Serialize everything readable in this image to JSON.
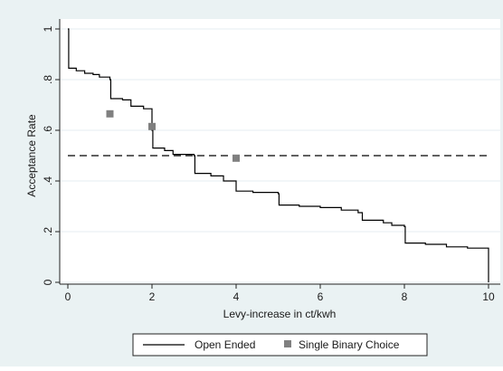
{
  "chart_data": {
    "type": "line",
    "xlabel": "Levy-increase in ct/kwh",
    "ylabel": "Acceptance Rate",
    "xlim": [
      0,
      10
    ],
    "ylim": [
      0,
      1
    ],
    "x_ticks": [
      "0",
      "2",
      "4",
      "6",
      "8",
      "10"
    ],
    "y_ticks": [
      "0",
      ".2",
      ".4",
      ".6",
      ".8",
      "1"
    ],
    "x_tick_values": [
      0,
      2,
      4,
      6,
      8,
      10
    ],
    "y_tick_values": [
      0,
      0.2,
      0.4,
      0.6,
      0.8,
      1
    ],
    "grid": "horizontal",
    "legend_position": "bottom",
    "reference_line": {
      "y": 0.5,
      "style": "dashed"
    },
    "series": [
      {
        "name": "Open Ended",
        "type": "step",
        "color": "#000000",
        "points": [
          [
            0.0,
            1.0
          ],
          [
            0.02,
            0.845
          ],
          [
            0.2,
            0.835
          ],
          [
            0.4,
            0.825
          ],
          [
            0.6,
            0.82
          ],
          [
            0.75,
            0.81
          ],
          [
            1.0,
            0.8
          ],
          [
            1.02,
            0.725
          ],
          [
            1.3,
            0.72
          ],
          [
            1.5,
            0.695
          ],
          [
            1.8,
            0.685
          ],
          [
            2.0,
            0.6
          ],
          [
            2.02,
            0.53
          ],
          [
            2.3,
            0.52
          ],
          [
            2.5,
            0.505
          ],
          [
            3.0,
            0.5
          ],
          [
            3.02,
            0.43
          ],
          [
            3.4,
            0.42
          ],
          [
            3.7,
            0.4
          ],
          [
            4.0,
            0.36
          ],
          [
            4.4,
            0.355
          ],
          [
            5.0,
            0.35
          ],
          [
            5.02,
            0.305
          ],
          [
            5.5,
            0.3
          ],
          [
            6.0,
            0.295
          ],
          [
            6.5,
            0.285
          ],
          [
            6.9,
            0.275
          ],
          [
            7.0,
            0.245
          ],
          [
            7.5,
            0.235
          ],
          [
            7.7,
            0.225
          ],
          [
            8.0,
            0.22
          ],
          [
            8.02,
            0.155
          ],
          [
            8.5,
            0.15
          ],
          [
            9.0,
            0.14
          ],
          [
            9.5,
            0.135
          ],
          [
            9.95,
            0.135
          ],
          [
            10.0,
            0.0
          ]
        ]
      },
      {
        "name": "Single Binary Choice",
        "type": "scatter",
        "color": "#808080",
        "points": [
          [
            1,
            0.665
          ],
          [
            2,
            0.615
          ],
          [
            4,
            0.49
          ]
        ]
      }
    ]
  }
}
